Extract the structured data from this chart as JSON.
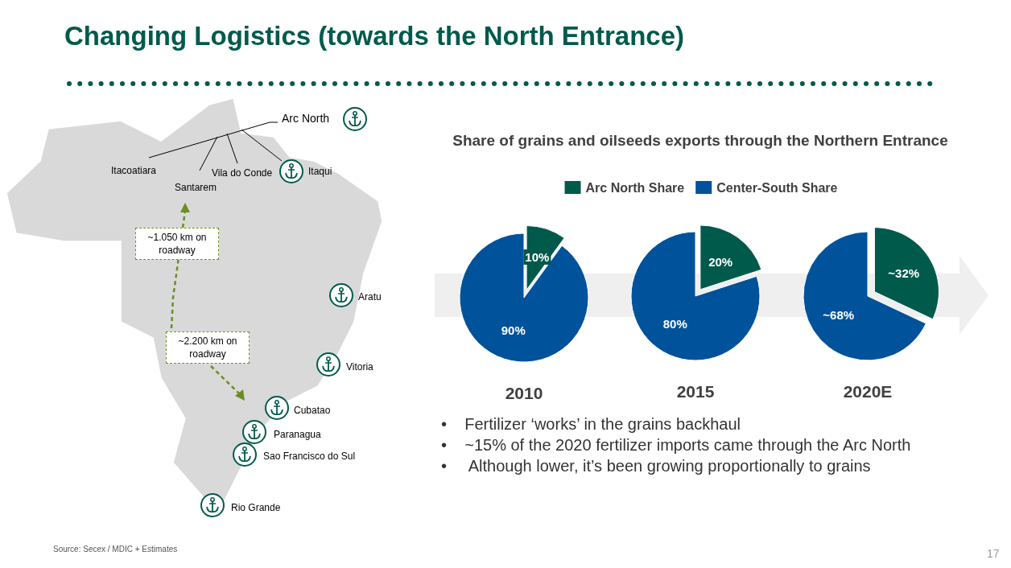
{
  "chart_data": [
    {
      "type": "other",
      "title": "Changing Logistics (towards the North Entrance)",
      "annotations": [
        "Arc North",
        "Itacoatiara",
        "Santarem",
        "Vila do Conde",
        "Itaqui",
        "~1.050 km on roadway",
        "~2.200 km on roadway",
        "Aratu",
        "Vitoria",
        "Cubatao",
        "Paranagua",
        "Sao Francisco do Sul",
        "Rio Grande",
        "Source: Secex / MDIC + Estimates",
        "17",
        "•    Fertilizer ‘works’ in the grains backhaul",
        "•    ~15% of the 2020 fertilizer imports came through the Arc North",
        "•     Although lower, it’s been growing proportionally to grains"
      ]
    },
    {
      "type": "pie",
      "title": "Share of grains and oilseeds exports through the Northern Entrance",
      "legend": "top",
      "xlabel": "2010",
      "categories": [
        "Arc North Share",
        "Center-South Share"
      ],
      "values": [
        10,
        90
      ],
      "colors": [
        "#005a4c",
        "#00529b"
      ],
      "value_labels": [
        "10%",
        "90%"
      ]
    },
    {
      "type": "pie",
      "xlabel": "2015",
      "categories": [
        null,
        null
      ],
      "values": [
        20,
        80
      ],
      "colors": [
        "#005a4c",
        "#00529b"
      ],
      "value_labels": [
        "20%",
        "80%"
      ]
    },
    {
      "type": "pie",
      "xlabel": "2020E",
      "categories": [
        null,
        null
      ],
      "values": [
        32,
        68
      ],
      "colors": [
        "#005a4c",
        "#00529b"
      ],
      "value_labels": [
        "~32%",
        "~68%"
      ]
    }
  ]
}
